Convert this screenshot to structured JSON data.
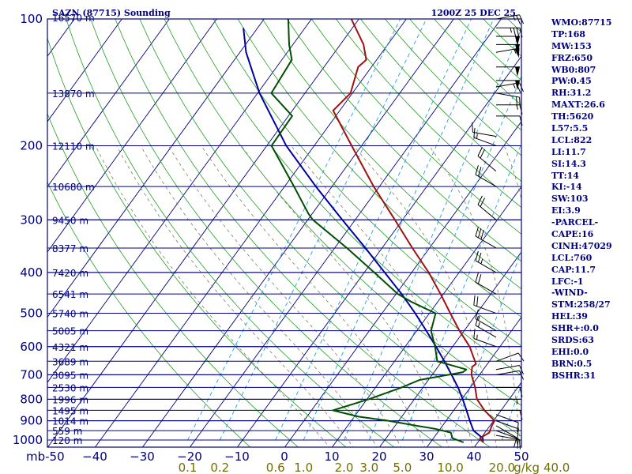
{
  "colors": {
    "frame": "#000080",
    "temperature": "#a01010",
    "dewpoint": "#005000",
    "parcel": "#0000a0",
    "dry_adiabat": "#20a020",
    "moist_adiabat": "#808060",
    "mixing_ratio": "#20a0e0",
    "mixing_label": "#707000",
    "wind": "#000000"
  },
  "chart_data": {
    "type": "line",
    "title": "SAZN (87715) Sounding",
    "valid_time": "1200Z 25 DEC 25",
    "pressure_ticks": [
      100,
      200,
      300,
      400,
      500,
      600,
      700,
      800,
      900,
      1000
    ],
    "pressure_tick_labels": [
      "100",
      "200",
      "300",
      "400",
      "500",
      "600",
      "700",
      "800",
      "900",
      "1000"
    ],
    "temperature_ticks": [
      -50,
      -40,
      -30,
      -20,
      -10,
      0,
      10,
      20,
      30,
      40,
      50
    ],
    "temperature_tick_labels": [
      "mb-50",
      "−40",
      "−30",
      "−20",
      "−10",
      "0",
      "10",
      "20",
      "30",
      "40",
      "50"
    ],
    "mixing_ratio_ticks": [
      0.1,
      0.2,
      0.6,
      1,
      2,
      3,
      5,
      10,
      20,
      40
    ],
    "mixing_ratio_labels": [
      "0.1",
      "0.2",
      "0.6",
      "1.0",
      "2.0",
      "3.0",
      "5.0",
      "10.0",
      "20.0",
      "40.0"
    ],
    "mixing_ratio_unit": "g/kg",
    "height_levels": [
      {
        "p": 100,
        "label": "16570 m"
      },
      {
        "p": 150,
        "label": "13870 m"
      },
      {
        "p": 200,
        "label": "12110 m"
      },
      {
        "p": 250,
        "label": "10680 m"
      },
      {
        "p": 300,
        "label": "9450 m"
      },
      {
        "p": 350,
        "label": "8377 m"
      },
      {
        "p": 400,
        "label": "7420 m"
      },
      {
        "p": 450,
        "label": "6541 m"
      },
      {
        "p": 500,
        "label": "5740 m"
      },
      {
        "p": 550,
        "label": "5005 m"
      },
      {
        "p": 600,
        "label": "4321 m"
      },
      {
        "p": 650,
        "label": "3689 m"
      },
      {
        "p": 700,
        "label": "3095 m"
      },
      {
        "p": 750,
        "label": "2530 m"
      },
      {
        "p": 800,
        "label": "1996 m"
      },
      {
        "p": 850,
        "label": "1495 m"
      },
      {
        "p": 900,
        "label": "1014 m"
      },
      {
        "p": 950,
        "label": "559 m"
      },
      {
        "p": 1000,
        "label": "120 m"
      }
    ],
    "temperature_profile": [
      {
        "p": 1013,
        "t": 21.2
      },
      {
        "p": 990,
        "t": 19.8
      },
      {
        "p": 960,
        "t": 20.9
      },
      {
        "p": 925,
        "t": 20.4
      },
      {
        "p": 900,
        "t": 20.2
      },
      {
        "p": 850,
        "t": 16.5
      },
      {
        "p": 800,
        "t": 13.2
      },
      {
        "p": 750,
        "t": 11.0
      },
      {
        "p": 700,
        "t": 8.3
      },
      {
        "p": 670,
        "t": 7.2
      },
      {
        "p": 660,
        "t": 7.6
      },
      {
        "p": 600,
        "t": 3.6
      },
      {
        "p": 550,
        "t": -1.0
      },
      {
        "p": 500,
        "t": -5.6
      },
      {
        "p": 450,
        "t": -10.6
      },
      {
        "p": 400,
        "t": -16.4
      },
      {
        "p": 350,
        "t": -23.6
      },
      {
        "p": 300,
        "t": -31.6
      },
      {
        "p": 250,
        "t": -41.2
      },
      {
        "p": 200,
        "t": -52.1
      },
      {
        "p": 165,
        "t": -61.4
      },
      {
        "p": 150,
        "t": -60.4
      },
      {
        "p": 130,
        "t": -62.8
      },
      {
        "p": 125,
        "t": -62.2
      },
      {
        "p": 115,
        "t": -65.1
      },
      {
        "p": 100,
        "t": -71.6
      }
    ],
    "dewpoint_profile": [
      {
        "p": 1013,
        "t": 17.0
      },
      {
        "p": 990,
        "t": 14.0
      },
      {
        "p": 960,
        "t": 12.8
      },
      {
        "p": 940,
        "t": 8.8
      },
      {
        "p": 925,
        "t": 4.6
      },
      {
        "p": 900,
        "t": -2.2
      },
      {
        "p": 880,
        "t": -9.1
      },
      {
        "p": 850,
        "t": -15.5
      },
      {
        "p": 800,
        "t": -9.6
      },
      {
        "p": 750,
        "t": -4.5
      },
      {
        "p": 720,
        "t": -1.9
      },
      {
        "p": 690,
        "t": 6.1
      },
      {
        "p": 680,
        "t": 6.4
      },
      {
        "p": 650,
        "t": -1.0
      },
      {
        "p": 600,
        "t": -3.7
      },
      {
        "p": 550,
        "t": -7.0
      },
      {
        "p": 500,
        "t": -8.7
      },
      {
        "p": 470,
        "t": -15.5
      },
      {
        "p": 450,
        "t": -19.6
      },
      {
        "p": 400,
        "t": -27.9
      },
      {
        "p": 350,
        "t": -37.4
      },
      {
        "p": 300,
        "t": -48.9
      },
      {
        "p": 290,
        "t": -50.8
      },
      {
        "p": 250,
        "t": -58.0
      },
      {
        "p": 200,
        "t": -69.0
      },
      {
        "p": 170,
        "t": -69.2
      },
      {
        "p": 150,
        "t": -77.1
      },
      {
        "p": 125,
        "t": -77.9
      },
      {
        "p": 115,
        "t": -80.8
      },
      {
        "p": 100,
        "t": -84.9
      }
    ],
    "parcel_profile": [
      {
        "p": 1013,
        "t": 21.1
      },
      {
        "p": 990,
        "t": 20.4
      },
      {
        "p": 950,
        "t": 17.3
      },
      {
        "p": 900,
        "t": 15.0
      },
      {
        "p": 850,
        "t": 12.7
      },
      {
        "p": 800,
        "t": 10.2
      },
      {
        "p": 750,
        "t": 7.4
      },
      {
        "p": 700,
        "t": 4.1
      },
      {
        "p": 650,
        "t": 0.5
      },
      {
        "p": 600,
        "t": -3.5
      },
      {
        "p": 550,
        "t": -8.0
      },
      {
        "p": 500,
        "t": -13.0
      },
      {
        "p": 450,
        "t": -18.8
      },
      {
        "p": 400,
        "t": -25.7
      },
      {
        "p": 350,
        "t": -33.5
      },
      {
        "p": 300,
        "t": -42.7
      },
      {
        "p": 250,
        "t": -53.4
      },
      {
        "p": 200,
        "t": -65.9
      },
      {
        "p": 150,
        "t": -79.6
      },
      {
        "p": 120,
        "t": -88.7
      },
      {
        "p": 105,
        "t": -93.0
      }
    ],
    "wind_barbs": [
      {
        "p": 1000,
        "dir": 90,
        "spd": 5
      },
      {
        "p": 975,
        "dir": 100,
        "spd": 10
      },
      {
        "p": 950,
        "dir": 110,
        "spd": 10
      },
      {
        "p": 925,
        "dir": 120,
        "spd": 10
      },
      {
        "p": 900,
        "dir": 110,
        "spd": 10
      },
      {
        "p": 870,
        "dir": 110,
        "spd": 10
      },
      {
        "p": 850,
        "dir": 90,
        "spd": 10
      },
      {
        "p": 800,
        "dir": 90,
        "spd": 5
      },
      {
        "p": 750,
        "dir": 90,
        "spd": 10
      },
      {
        "p": 700,
        "dir": 80,
        "spd": 10
      },
      {
        "p": 680,
        "dir": 80,
        "spd": 10
      },
      {
        "p": 650,
        "dir": 70,
        "spd": 10
      },
      {
        "p": 600,
        "dir": 290,
        "spd": 15
      },
      {
        "p": 570,
        "dir": 300,
        "spd": 15
      },
      {
        "p": 550,
        "dir": 300,
        "spd": 15
      },
      {
        "p": 500,
        "dir": 290,
        "spd": 20
      },
      {
        "p": 450,
        "dir": 300,
        "spd": 20
      },
      {
        "p": 400,
        "dir": 300,
        "spd": 25
      },
      {
        "p": 350,
        "dir": 300,
        "spd": 30
      },
      {
        "p": 300,
        "dir": 310,
        "spd": 20
      },
      {
        "p": 250,
        "dir": 300,
        "spd": 20
      },
      {
        "p": 230,
        "dir": 310,
        "spd": 20
      },
      {
        "p": 200,
        "dir": 290,
        "spd": 15
      },
      {
        "p": 190,
        "dir": 280,
        "spd": 10
      },
      {
        "p": 170,
        "dir": 90,
        "spd": 10
      },
      {
        "p": 160,
        "dir": 90,
        "spd": 15
      },
      {
        "p": 150,
        "dir": 100,
        "spd": 20
      },
      {
        "p": 145,
        "dir": 80,
        "spd": 25
      },
      {
        "p": 140,
        "dir": 90,
        "spd": 50
      },
      {
        "p": 130,
        "dir": 90,
        "spd": 50
      },
      {
        "p": 120,
        "dir": 80,
        "spd": 55
      },
      {
        "p": 115,
        "dir": 90,
        "spd": 50
      },
      {
        "p": 110,
        "dir": 90,
        "spd": 50
      },
      {
        "p": 105,
        "dir": 90,
        "spd": 35
      },
      {
        "p": 100,
        "dir": 80,
        "spd": 25
      }
    ]
  },
  "indices": [
    "WMO:87715",
    "TP:168",
    "MW:153",
    "FRZ:650",
    "WB0:807",
    "PW:0.45",
    "RH:31.2",
    "MAXT:26.6",
    "TH:5620",
    "L57:5.5",
    "LCL:822",
    "LI:11.7",
    "SI:14.3",
    "TT:14",
    "KI:-14",
    "SW:103",
    "EI:3.9",
    "-PARCEL-",
    "CAPE:16",
    "CINH:47029",
    "LCL:760",
    "CAP:11.7",
    "LFC:-1",
    "-WIND-",
    "STM:258/27",
    "HEL:39",
    "SHR+:0.0",
    "SRDS:63",
    "EHI:0.0",
    "BRN:0.5",
    "BSHR:31"
  ]
}
